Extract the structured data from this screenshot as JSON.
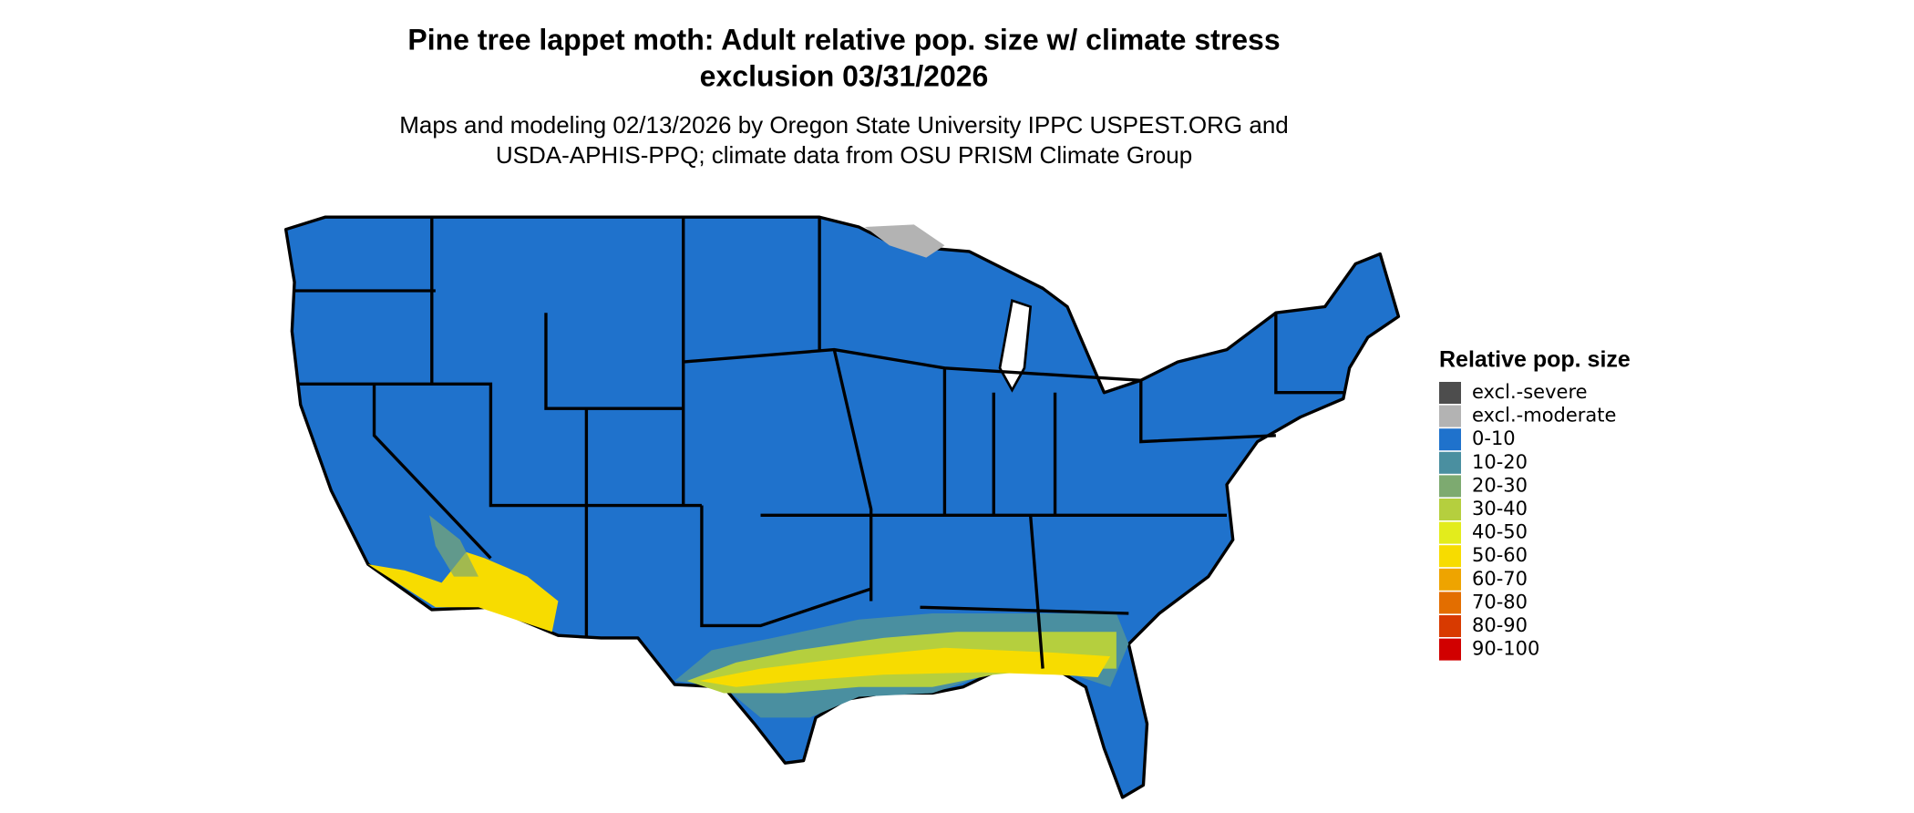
{
  "header": {
    "title": [
      "Pine tree lappet moth: Adult relative pop. size w/ climate stress",
      "exclusion 03/31/2026"
    ],
    "subtitle": [
      "Maps and modeling 02/13/2026 by Oregon State University IPPC USPEST.ORG and",
      "USDA-APHIS-PPQ; climate data from OSU PRISM Climate Group"
    ]
  },
  "legend": {
    "title": "Relative pop. size",
    "items": [
      {
        "label": "excl.-severe",
        "color": "#4d4d4d"
      },
      {
        "label": "excl.-moderate",
        "color": "#b3b3b3"
      },
      {
        "label": "0-10",
        "color": "#1f72cc"
      },
      {
        "label": "10-20",
        "color": "#4a8fa0"
      },
      {
        "label": "20-30",
        "color": "#7daa70"
      },
      {
        "label": "30-40",
        "color": "#b5cf3e"
      },
      {
        "label": "40-50",
        "color": "#e3ec1c"
      },
      {
        "label": "50-60",
        "color": "#f7dc00"
      },
      {
        "label": "60-70",
        "color": "#eea400"
      },
      {
        "label": "70-80",
        "color": "#e36e00"
      },
      {
        "label": "80-90",
        "color": "#d83a00"
      },
      {
        "label": "90-100",
        "color": "#d10000"
      }
    ]
  }
}
